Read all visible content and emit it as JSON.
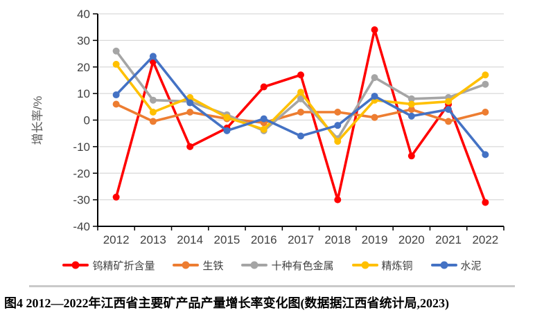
{
  "figure": {
    "caption": "图4  2012—2022年江西省主要矿产品产量增长率变化图(数据据江西省统计局,2023)"
  },
  "chart_data": {
    "type": "line",
    "title": "",
    "xlabel": "",
    "ylabel": "增长率/%",
    "ylim": [
      -40,
      40
    ],
    "ytick_step": 10,
    "grid": true,
    "legend_position": "bottom",
    "categories": [
      "2012",
      "2013",
      "2014",
      "2015",
      "2016",
      "2017",
      "2018",
      "2019",
      "2020",
      "2021",
      "2022"
    ],
    "series": [
      {
        "name": "钨精矿折含量",
        "color": "#FF0000",
        "values": [
          -29,
          22,
          -10,
          -3,
          12.5,
          17,
          -30,
          34,
          -13.5,
          6,
          -31
        ]
      },
      {
        "name": "生铁",
        "color": "#ED7D31",
        "values": [
          6,
          -0.5,
          3,
          0.5,
          -1,
          3,
          3,
          1,
          4,
          -0.5,
          3
        ]
      },
      {
        "name": "十种有色金属",
        "color": "#A5A5A5",
        "values": [
          26,
          7.5,
          7,
          2,
          -4,
          8,
          -7,
          16,
          8,
          8.5,
          13.5
        ]
      },
      {
        "name": "精炼铜",
        "color": "#FFC000",
        "values": [
          21,
          3,
          8.5,
          1,
          -3.5,
          10.5,
          -8,
          7.5,
          6,
          7,
          17
        ]
      },
      {
        "name": "水泥",
        "color": "#4472C4",
        "values": [
          9.5,
          24,
          6.5,
          -4,
          0.5,
          -6,
          -2,
          9,
          1.5,
          4,
          -13
        ]
      }
    ]
  },
  "style_colors": {
    "axis": "#000000",
    "grid": "#d9d9d9",
    "tick_label": "#404040",
    "axis_title": "#595959",
    "divider": "#c9c9c9"
  }
}
